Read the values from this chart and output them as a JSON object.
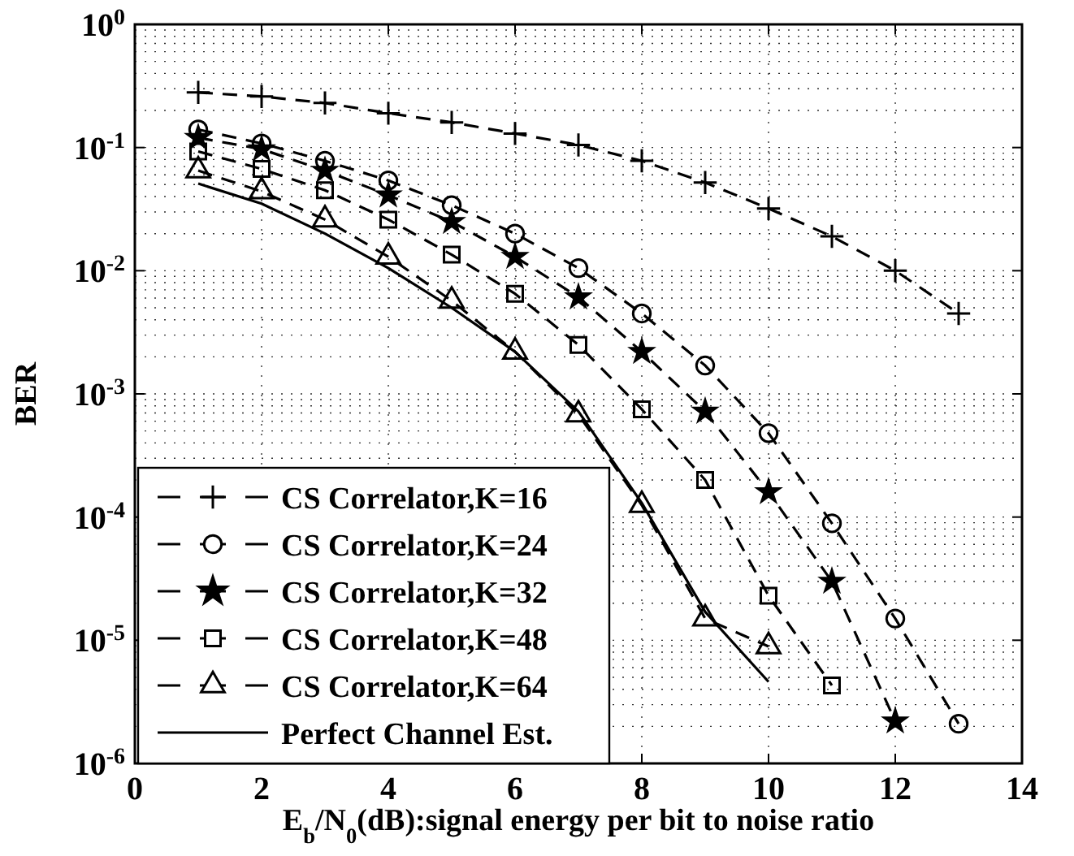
{
  "chart_data": {
    "type": "line",
    "xlabel": "E$_{b}$/N$_{0}$(dB):signal energy per bit to noise ratio",
    "ylabel": "BER",
    "x": [
      1,
      2,
      3,
      4,
      5,
      6,
      7,
      8,
      9,
      10,
      11,
      12,
      13
    ],
    "xlim": [
      0,
      14
    ],
    "xticks": [
      0,
      2,
      4,
      6,
      8,
      10,
      12,
      14
    ],
    "ylim": [
      1e-06,
      1
    ],
    "log": true,
    "yticks": [
      {
        "value": 1e-06,
        "label": "10$^{-6}$"
      },
      {
        "value": 1e-05,
        "label": "10$^{-5}$"
      },
      {
        "value": 0.0001,
        "label": "10$^{-4}$"
      },
      {
        "value": 0.001,
        "label": "10$^{-3}$"
      },
      {
        "value": 0.01,
        "label": "10$^{-2}$"
      },
      {
        "value": 0.1,
        "label": "10$^{-1}$"
      },
      {
        "value": 1,
        "label": "10$^{0}$"
      }
    ],
    "grid": true,
    "legend": "bottom left",
    "series": [
      {
        "name": "CS Correlator,K=16",
        "color": "#000000",
        "marker": "cross",
        "line_style": "dashed",
        "values": [
          0.28,
          0.26,
          0.23,
          0.19,
          0.16,
          0.13,
          0.105,
          0.078,
          0.052,
          0.032,
          0.019,
          0.01,
          0.0045
        ]
      },
      {
        "name": "CS Correlator,K=24",
        "color": "#000000",
        "marker": "circle",
        "line_style": "dashed",
        "values": [
          0.14,
          0.108,
          0.078,
          0.054,
          0.034,
          0.02,
          0.0105,
          0.0045,
          0.0017,
          0.00048,
          8.9e-05,
          1.5e-05,
          2.1e-06
        ]
      },
      {
        "name": "CS Correlator,K=32",
        "color": "#000000",
        "marker": "star",
        "line_style": "dashed",
        "values": [
          0.12,
          0.097,
          0.065,
          0.041,
          0.025,
          0.013,
          0.0061,
          0.0022,
          0.00072,
          0.00016,
          3e-05,
          2.2e-06,
          null
        ]
      },
      {
        "name": "CS Correlator,K=48",
        "color": "#000000",
        "marker": "square",
        "line_style": "dashed",
        "values": [
          0.093,
          0.067,
          0.045,
          0.026,
          0.0135,
          0.0065,
          0.0025,
          0.00075,
          0.0002,
          2.3e-05,
          4.3e-06,
          null,
          null
        ]
      },
      {
        "name": "CS Correlator,K=64",
        "color": "#000000",
        "marker": "triangle",
        "line_style": "dashed",
        "values": [
          0.065,
          0.044,
          0.026,
          0.013,
          0.0057,
          0.0022,
          0.00068,
          0.000125,
          1.5e-05,
          8.9e-06,
          null,
          null,
          null
        ]
      },
      {
        "name": "Perfect Channel Est.",
        "color": "#000000",
        "marker": "none",
        "line_style": "solid",
        "values": [
          0.051,
          0.035,
          0.02,
          0.0105,
          0.005,
          0.0022,
          0.00072,
          0.00013,
          1.7e-05,
          4.6e-06,
          null,
          null,
          null
        ]
      }
    ]
  }
}
